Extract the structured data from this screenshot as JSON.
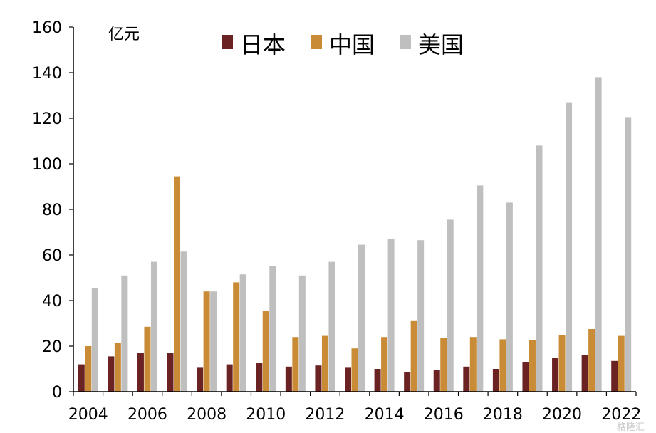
{
  "chart_data": {
    "type": "bar",
    "title": "",
    "unit_label": "亿元",
    "xlabel": "",
    "ylabel": "",
    "ylim": [
      0,
      160
    ],
    "yticks": [
      0,
      20,
      40,
      60,
      80,
      100,
      120,
      140,
      160
    ],
    "x_tick_labels": [
      "2004",
      "2006",
      "2008",
      "2010",
      "2012",
      "2014",
      "2016",
      "2018",
      "2020",
      "2022"
    ],
    "categories": [
      "2004",
      "2005",
      "2006",
      "2007",
      "2008",
      "2009",
      "2010",
      "2011",
      "2012",
      "2013",
      "2014",
      "2015",
      "2016",
      "2017",
      "2018",
      "2019",
      "2020",
      "2021",
      "2022"
    ],
    "legend_position": "top",
    "grid": false,
    "series": [
      {
        "name": "日本",
        "color": "#6b2222",
        "values": [
          12,
          15.5,
          17,
          17,
          10.5,
          12,
          12.5,
          11,
          11.5,
          10.5,
          10,
          8.5,
          9.5,
          11,
          10,
          13,
          15,
          16,
          13.5
        ]
      },
      {
        "name": "中国",
        "color": "#c98b36",
        "values": [
          20,
          21.5,
          28.5,
          94.5,
          44,
          48,
          35.5,
          24,
          24.5,
          19,
          24,
          31,
          23.5,
          24,
          23,
          22.5,
          25,
          27.5,
          24.5
        ]
      },
      {
        "name": "美国",
        "color": "#bfbfbf",
        "values": [
          45.5,
          51,
          57,
          61.5,
          44,
          51.5,
          55,
          51,
          57,
          64.5,
          67,
          66.5,
          75.5,
          90.5,
          83,
          108,
          127,
          138,
          120.5
        ]
      }
    ]
  },
  "watermark": "格隆汇"
}
